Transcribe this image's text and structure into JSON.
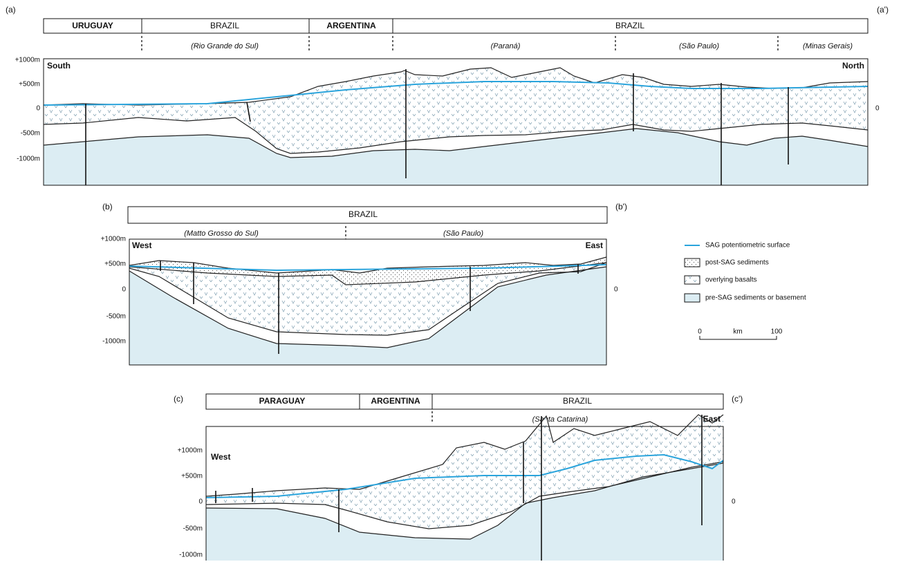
{
  "sections": [
    {
      "label": "(a)",
      "label_end": "(a')",
      "countries": [
        "URUGUAY",
        "BRAZIL",
        "ARGENTINA",
        "BRAZIL"
      ],
      "regions": [
        "(Rio Grande do Sul)",
        "(Paraná)",
        "(São Paulo)",
        "(Minas Gerais)"
      ],
      "directions": [
        "South",
        "North"
      ],
      "left_axis": [
        "+1000m",
        "+500m",
        "0",
        "-500m",
        "-1000m"
      ],
      "right_axis": "0"
    },
    {
      "label": "(b)",
      "label_end": "(b')",
      "countries": [
        "BRAZIL"
      ],
      "regions": [
        "(Matto Grosso do Sul)",
        "(São Paulo)"
      ],
      "directions": [
        "West",
        "East"
      ],
      "left_axis": [
        "+1000m",
        "+500m",
        "0",
        "-500m",
        "-1000m"
      ],
      "right_axis": "0"
    },
    {
      "label": "(c)",
      "label_end": "(c')",
      "countries": [
        "PARAGUAY",
        "ARGENTINA",
        "BRAZIL"
      ],
      "regions": [
        "(Santa Catarina)"
      ],
      "directions": [
        "West",
        "East"
      ],
      "left_axis": [
        "+1000m",
        "+500m",
        "0",
        "-500m",
        "-1000m"
      ],
      "right_axis": "0"
    }
  ],
  "legend": {
    "items": [
      "SAG potentiometric surface",
      "post-SAG sediments",
      "overlying basalts",
      "pre-SAG sediments or basement"
    ]
  },
  "scale": {
    "start": "0",
    "unit": "km",
    "end": "100"
  }
}
